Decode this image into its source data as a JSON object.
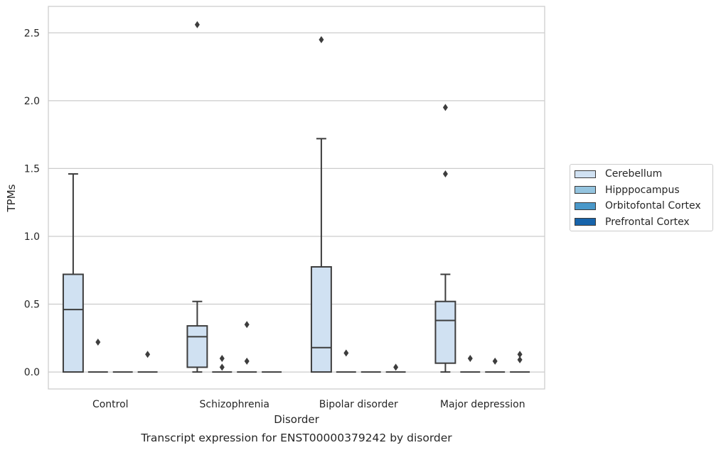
{
  "chart_data": {
    "type": "box",
    "title": "Transcript expression for ENST00000379242 by disorder",
    "xlabel": "Disorder",
    "ylabel": "TPMs",
    "ylim": [
      -0.125,
      2.695
    ],
    "yticks": [
      "0.0",
      "0.5",
      "1.0",
      "1.5",
      "2.0",
      "2.5"
    ],
    "ytick_values": [
      0,
      0.5,
      1.0,
      1.5,
      2.0,
      2.5
    ],
    "grid": true,
    "legend_position": "right",
    "categories": [
      "Control",
      "Schizophrenia",
      "Bipolar disorder",
      "Major depression"
    ],
    "series": [
      {
        "name": "Cerebellum",
        "color": "#d0e1f2",
        "boxes": [
          {
            "whisker_low": 0,
            "q1": 0,
            "median": 0.46,
            "q3": 0.72,
            "whisker_high": 1.46,
            "outliers": []
          },
          {
            "whisker_low": 0,
            "q1": 0.035,
            "median": 0.26,
            "q3": 0.34,
            "whisker_high": 0.52,
            "outliers": [
              2.56
            ]
          },
          {
            "whisker_low": 0,
            "q1": 0,
            "median": 0.18,
            "q3": 0.775,
            "whisker_high": 1.72,
            "outliers": [
              2.45
            ]
          },
          {
            "whisker_low": 0,
            "q1": 0.065,
            "median": 0.38,
            "q3": 0.52,
            "whisker_high": 0.72,
            "outliers": [
              1.46,
              1.95
            ]
          }
        ]
      },
      {
        "name": "Hipppocampus",
        "color": "#94c4df",
        "boxes": [
          {
            "whisker_low": 0,
            "q1": 0,
            "median": 0,
            "q3": 0,
            "whisker_high": 0,
            "outliers": [
              0.22
            ]
          },
          {
            "whisker_low": 0,
            "q1": 0,
            "median": 0,
            "q3": 0,
            "whisker_high": 0,
            "outliers": [
              0.1,
              0.035
            ]
          },
          {
            "whisker_low": 0,
            "q1": 0,
            "median": 0,
            "q3": 0,
            "whisker_high": 0,
            "outliers": [
              0.14
            ]
          },
          {
            "whisker_low": 0,
            "q1": 0,
            "median": 0,
            "q3": 0,
            "whisker_high": 0,
            "outliers": [
              0.1
            ]
          }
        ]
      },
      {
        "name": "Orbitofontal Cortex",
        "color": "#4a98c9",
        "boxes": [
          {
            "whisker_low": 0,
            "q1": 0,
            "median": 0,
            "q3": 0,
            "whisker_high": 0,
            "outliers": []
          },
          {
            "whisker_low": 0,
            "q1": 0,
            "median": 0,
            "q3": 0,
            "whisker_high": 0,
            "outliers": [
              0.08,
              0.35
            ]
          },
          {
            "whisker_low": 0,
            "q1": 0,
            "median": 0,
            "q3": 0,
            "whisker_high": 0,
            "outliers": []
          },
          {
            "whisker_low": 0,
            "q1": 0,
            "median": 0,
            "q3": 0,
            "whisker_high": 0,
            "outliers": [
              0.08
            ]
          }
        ]
      },
      {
        "name": "Prefrontal Cortex",
        "color": "#1764ab",
        "boxes": [
          {
            "whisker_low": 0,
            "q1": 0,
            "median": 0,
            "q3": 0,
            "whisker_high": 0,
            "outliers": [
              0.13
            ]
          },
          {
            "whisker_low": 0,
            "q1": 0,
            "median": 0,
            "q3": 0,
            "whisker_high": 0,
            "outliers": []
          },
          {
            "whisker_low": 0,
            "q1": 0,
            "median": 0,
            "q3": 0,
            "whisker_high": 0,
            "outliers": [
              0.035
            ]
          },
          {
            "whisker_low": 0,
            "q1": 0,
            "median": 0,
            "q3": 0,
            "whisker_high": 0,
            "outliers": [
              0.09,
              0.13
            ]
          }
        ]
      }
    ]
  }
}
